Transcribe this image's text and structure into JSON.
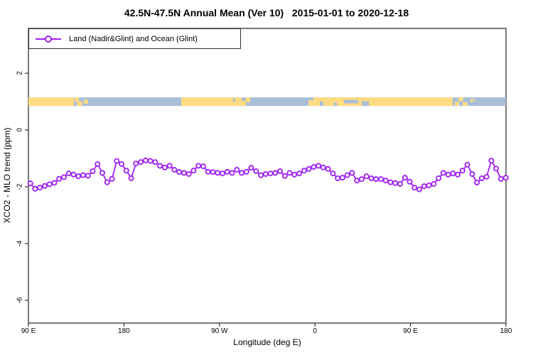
{
  "title": "42.5N-47.5N Annual Mean (Ver 10)   2015-01-01 to 2020-12-18",
  "legend": {
    "label": "Land (Nadir&Glint) and Ocean (Glint)"
  },
  "colors": {
    "series": "#A020F0",
    "marker_fill": "#ffffff",
    "land": "#FFDB81",
    "ocean": "#A9BED9",
    "axis": "#333333"
  },
  "chart_data": {
    "type": "line",
    "title": "42.5N-47.5N Annual Mean (Ver 10)   2015-01-01 to 2020-12-18",
    "xlabel": "Longitude (deg E)",
    "ylabel": "XCO2 - MLO trend (ppm)",
    "xlim": [
      90,
      540
    ],
    "ylim": [
      -6.8,
      3.58
    ],
    "grid": false,
    "legend_position": "topleft",
    "x_ticks": [
      {
        "pos": 90,
        "label": "90 E"
      },
      {
        "pos": 180,
        "label": "180"
      },
      {
        "pos": 270,
        "label": "90 W"
      },
      {
        "pos": 360,
        "label": "0"
      },
      {
        "pos": 450,
        "label": "90 E"
      },
      {
        "pos": 540,
        "label": "180"
      }
    ],
    "y_ticks": [
      {
        "pos": 2,
        "label": "2"
      },
      {
        "pos": 0,
        "label": "0"
      },
      {
        "pos": -2,
        "label": "-2"
      },
      {
        "pos": -4,
        "label": "-4"
      },
      {
        "pos": -6,
        "label": "-6"
      }
    ],
    "series": [
      {
        "name": "Land (Nadir&Glint) and Ocean (Glint)",
        "x_start": 91.8,
        "x_step": 4.525,
        "values": [
          -1.88,
          -2.07,
          -2.03,
          -1.97,
          -1.91,
          -1.86,
          -1.72,
          -1.66,
          -1.53,
          -1.57,
          -1.63,
          -1.59,
          -1.61,
          -1.45,
          -1.2,
          -1.51,
          -1.84,
          -1.72,
          -1.09,
          -1.2,
          -1.43,
          -1.7,
          -1.18,
          -1.13,
          -1.07,
          -1.09,
          -1.13,
          -1.26,
          -1.32,
          -1.26,
          -1.4,
          -1.48,
          -1.51,
          -1.55,
          -1.43,
          -1.26,
          -1.28,
          -1.47,
          -1.48,
          -1.51,
          -1.53,
          -1.47,
          -1.51,
          -1.4,
          -1.51,
          -1.47,
          -1.33,
          -1.45,
          -1.59,
          -1.55,
          -1.53,
          -1.51,
          -1.45,
          -1.62,
          -1.51,
          -1.57,
          -1.53,
          -1.43,
          -1.37,
          -1.3,
          -1.26,
          -1.32,
          -1.37,
          -1.53,
          -1.7,
          -1.68,
          -1.59,
          -1.51,
          -1.78,
          -1.73,
          -1.63,
          -1.7,
          -1.73,
          -1.73,
          -1.78,
          -1.84,
          -1.87,
          -1.9,
          -1.68,
          -1.82,
          -2.03,
          -2.09,
          -1.98,
          -1.95,
          -1.9,
          -1.7,
          -1.51,
          -1.57,
          -1.53,
          -1.57,
          -1.43,
          -1.22,
          -1.55,
          -1.85,
          -1.7,
          -1.65,
          -1.08,
          -1.36,
          -1.72,
          -1.68
        ]
      }
    ],
    "map_band": {
      "description": "42.5N-47.5N latitude strip of world map, land over ocean",
      "y_range_values": [
        0.85,
        1.15
      ],
      "rects": [
        {
          "x1": 0.0,
          "x2": 0.0952,
          "y1": 0.0,
          "y2": 1.0,
          "fill": "land"
        },
        {
          "x1": 0.0967,
          "x2": 0.1056,
          "y1": 0.0,
          "y2": 0.5,
          "fill": "land"
        },
        {
          "x1": 0.1012,
          "x2": 0.1131,
          "y1": 0.45,
          "y2": 1.0,
          "fill": "land"
        },
        {
          "x1": 0.1161,
          "x2": 0.125,
          "y1": 0.25,
          "y2": 0.75,
          "fill": "land"
        },
        {
          "x1": 0.3199,
          "x2": 0.4464,
          "y1": 0.0,
          "y2": 1.0,
          "fill": "land"
        },
        {
          "x1": 0.4464,
          "x2": 0.4554,
          "y1": 0.4,
          "y2": 1.0,
          "fill": "land"
        },
        {
          "x1": 0.4554,
          "x2": 0.4643,
          "y1": 0.0,
          "y2": 0.55,
          "fill": "land"
        },
        {
          "x1": 0.5863,
          "x2": 0.8884,
          "y1": 0.0,
          "y2": 1.0,
          "fill": "land"
        },
        {
          "x1": 0.8929,
          "x2": 0.9018,
          "y1": 0.5,
          "y2": 1.0,
          "fill": "land"
        },
        {
          "x1": 0.9003,
          "x2": 0.9107,
          "y1": 0.0,
          "y2": 0.45,
          "fill": "land"
        },
        {
          "x1": 0.9092,
          "x2": 0.9196,
          "y1": 0.55,
          "y2": 1.0,
          "fill": "land"
        },
        {
          "x1": 0.9256,
          "x2": 0.9301,
          "y1": 0.2,
          "y2": 0.55,
          "fill": "land"
        },
        {
          "x1": 0.9315,
          "x2": 0.9345,
          "y1": 0.15,
          "y2": 0.5,
          "fill": "land"
        },
        {
          "x1": 0.4286,
          "x2": 0.433,
          "y1": 0.1,
          "y2": 0.5,
          "fill": "ocean"
        },
        {
          "x1": 0.5863,
          "x2": 0.5967,
          "y1": 0.0,
          "y2": 0.35,
          "fill": "ocean"
        },
        {
          "x1": 0.6101,
          "x2": 0.6176,
          "y1": 0.5,
          "y2": 1.0,
          "fill": "ocean"
        },
        {
          "x1": 0.6399,
          "x2": 0.6458,
          "y1": 0.6,
          "y2": 1.0,
          "fill": "ocean"
        },
        {
          "x1": 0.6607,
          "x2": 0.6905,
          "y1": 0.3,
          "y2": 0.7,
          "fill": "ocean"
        },
        {
          "x1": 0.6979,
          "x2": 0.7128,
          "y1": 0.45,
          "y2": 1.0,
          "fill": "ocean"
        }
      ]
    }
  }
}
